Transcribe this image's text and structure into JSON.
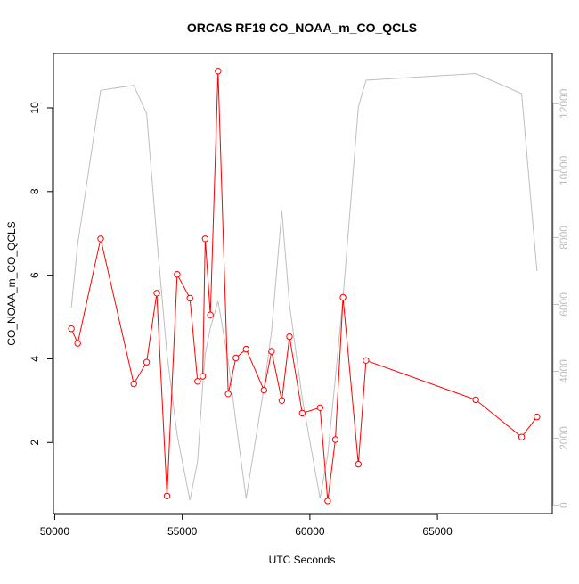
{
  "chart_data": {
    "type": "line",
    "title": "ORCAS RF19 CO_NOAA_m_CO_QCLS",
    "xlabel": "UTC Seconds",
    "ylabel": "CO_NOAA_m_CO_QCLS",
    "y2label": "",
    "xlim": [
      49950,
      69500
    ],
    "ylim": [
      0.3,
      11.3
    ],
    "y2lim": [
      -250,
      13500
    ],
    "x_ticks": [
      50000,
      55000,
      60000,
      65000
    ],
    "y_ticks": [
      2,
      4,
      6,
      8,
      10
    ],
    "y2_ticks": [
      0,
      2000,
      4000,
      6000,
      8000,
      10000,
      12000
    ],
    "grid": false,
    "legend": "none",
    "colors": {
      "series": "#ff0000",
      "secondary": "#bebebe",
      "axis": "#000000",
      "axis2": "#bebebe"
    },
    "series": [
      {
        "x": [
          50650,
          50900,
          51800,
          53100,
          53600,
          54000,
          54400,
          54800,
          55300,
          55600,
          55800,
          55900,
          56100,
          56400,
          56800,
          57100,
          57500,
          58200,
          58500,
          58900,
          59200,
          59700,
          60400,
          60700,
          61000,
          61300,
          61900,
          62200,
          66500,
          68300,
          68900
        ],
        "y": [
          4.72,
          4.37,
          6.87,
          3.4,
          3.92,
          5.57,
          0.72,
          6.02,
          5.45,
          3.46,
          3.58,
          6.87,
          5.05,
          10.88,
          3.16,
          4.02,
          4.23,
          3.25,
          4.18,
          3.0,
          4.53,
          2.7,
          2.83,
          0.6,
          2.07,
          5.47,
          1.48,
          3.96,
          3.02,
          2.13,
          2.61
        ],
        "color": "#ff0000"
      },
      {
        "axis": "right",
        "x": [
          50650,
          50900,
          51800,
          53100,
          53600,
          54000,
          54400,
          54800,
          55300,
          55600,
          55800,
          55900,
          56100,
          56400,
          56800,
          57100,
          57500,
          58200,
          58500,
          58900,
          59200,
          59700,
          60400,
          60700,
          61000,
          61300,
          61900,
          62200,
          66500,
          68300,
          68900
        ],
        "y": [
          5900,
          7800,
          12400,
          12550,
          11700,
          8000,
          4500,
          2100,
          150,
          1300,
          3600,
          4500,
          5300,
          6100,
          4300,
          2500,
          200,
          3500,
          5200,
          8800,
          6000,
          3200,
          200,
          1500,
          3800,
          6200,
          11900,
          12700,
          12900,
          12300,
          7000
        ],
        "color": "#bebebe"
      }
    ]
  }
}
